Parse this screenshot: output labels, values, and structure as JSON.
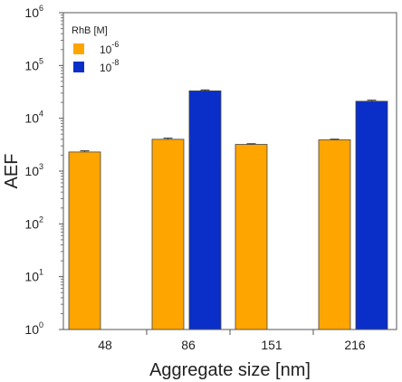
{
  "chart_data": {
    "type": "bar",
    "title": "",
    "xlabel": "Aggregate size [nm]",
    "ylabel": "AEF",
    "categories": [
      "48",
      "86",
      "151",
      "216"
    ],
    "y_scale": "log",
    "ylim": [
      1,
      1000000
    ],
    "y_ticks": [
      {
        "base": "10",
        "exp": "0",
        "value": 1
      },
      {
        "base": "10",
        "exp": "1",
        "value": 10
      },
      {
        "base": "10",
        "exp": "2",
        "value": 100
      },
      {
        "base": "10",
        "exp": "3",
        "value": 1000
      },
      {
        "base": "10",
        "exp": "4",
        "value": 10000
      },
      {
        "base": "10",
        "exp": "5",
        "value": 100000
      },
      {
        "base": "10",
        "exp": "6",
        "value": 1000000
      }
    ],
    "legend": {
      "title": "RhB [M]",
      "placement": "top-left",
      "entries": [
        {
          "base": "10",
          "exp": "-6",
          "color": "#FFA500"
        },
        {
          "base": "10",
          "exp": "-8",
          "color": "#0A2FC8"
        }
      ]
    },
    "series": [
      {
        "concentration": "10^-6",
        "color": "#FFA500",
        "values": [
          2300,
          4000,
          3200,
          3900
        ],
        "errors": [
          120,
          200,
          100,
          120
        ]
      },
      {
        "concentration": "10^-8",
        "color": "#0A2FC8",
        "values": [
          null,
          33000,
          null,
          21000
        ],
        "errors": [
          null,
          1500,
          null,
          1000
        ]
      }
    ],
    "grid": false
  }
}
